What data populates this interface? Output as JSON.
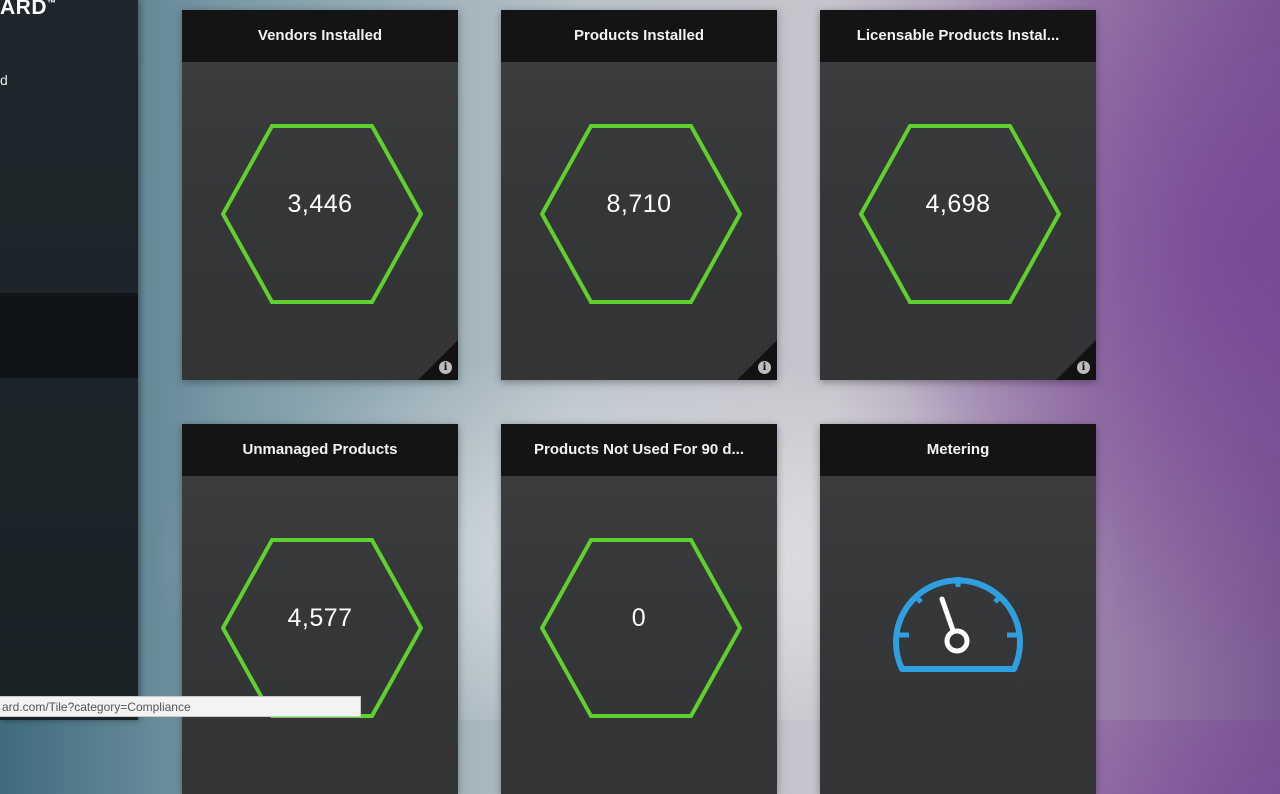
{
  "sidebar": {
    "brand": "ARD",
    "brand_mark": "™",
    "nav_fragment": "d"
  },
  "tiles": [
    {
      "title": "Vendors Installed",
      "value": "3,446"
    },
    {
      "title": "Products Installed",
      "value": "8,710"
    },
    {
      "title": "Licensable Products Instal...",
      "value": "4,698"
    },
    {
      "title": "Unmanaged Products",
      "value": "4,577"
    },
    {
      "title": "Products Not Used For 90 d...",
      "value": "0"
    },
    {
      "title": "Metering",
      "icon": "speedometer-icon"
    }
  ],
  "info_icon": "i",
  "status_url": "ard.com/Tile?category=Compliance",
  "colors": {
    "hex_outline": "#5fd12f",
    "gauge": "#2f9fe0",
    "tile_header": "#141414"
  }
}
